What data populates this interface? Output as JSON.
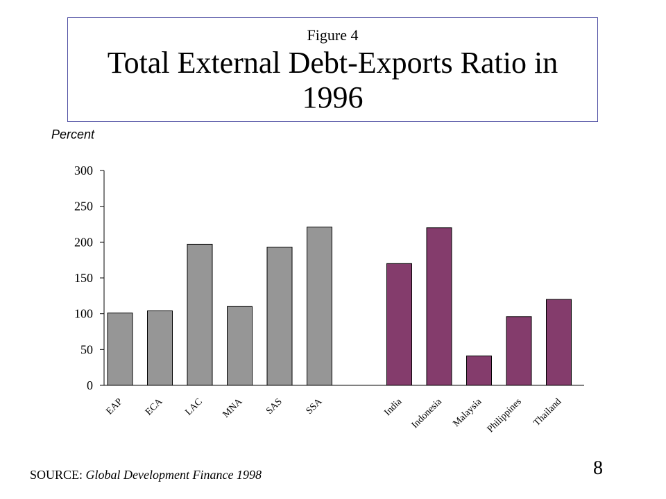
{
  "figure_label": "Figure 4",
  "title": "Total External Debt-Exports Ratio in 1996",
  "source_label": "SOURCE:",
  "source_text": "Global Development Finance 1998",
  "page_number": "8",
  "colors": {
    "regions": "#969696",
    "countries": "#843c6c",
    "border": "#4a4aa0"
  },
  "chart_data": {
    "type": "bar",
    "ylabel": "Percent",
    "xlabel": "",
    "ylim": [
      0,
      300
    ],
    "yticks": [
      0,
      50,
      100,
      150,
      200,
      250,
      300
    ],
    "grid": false,
    "legend": "none",
    "groups": [
      {
        "color": "#969696",
        "categories": [
          "EAP",
          "ECA",
          "LAC",
          "MNA",
          "SAS",
          "SSA"
        ],
        "values": [
          101,
          104,
          197,
          110,
          193,
          221
        ]
      },
      {
        "color": "#843c6c",
        "categories": [
          "India",
          "Indonesia",
          "Malaysia",
          "Philippines",
          "Thailand"
        ],
        "values": [
          170,
          220,
          41,
          96,
          120
        ]
      }
    ]
  }
}
